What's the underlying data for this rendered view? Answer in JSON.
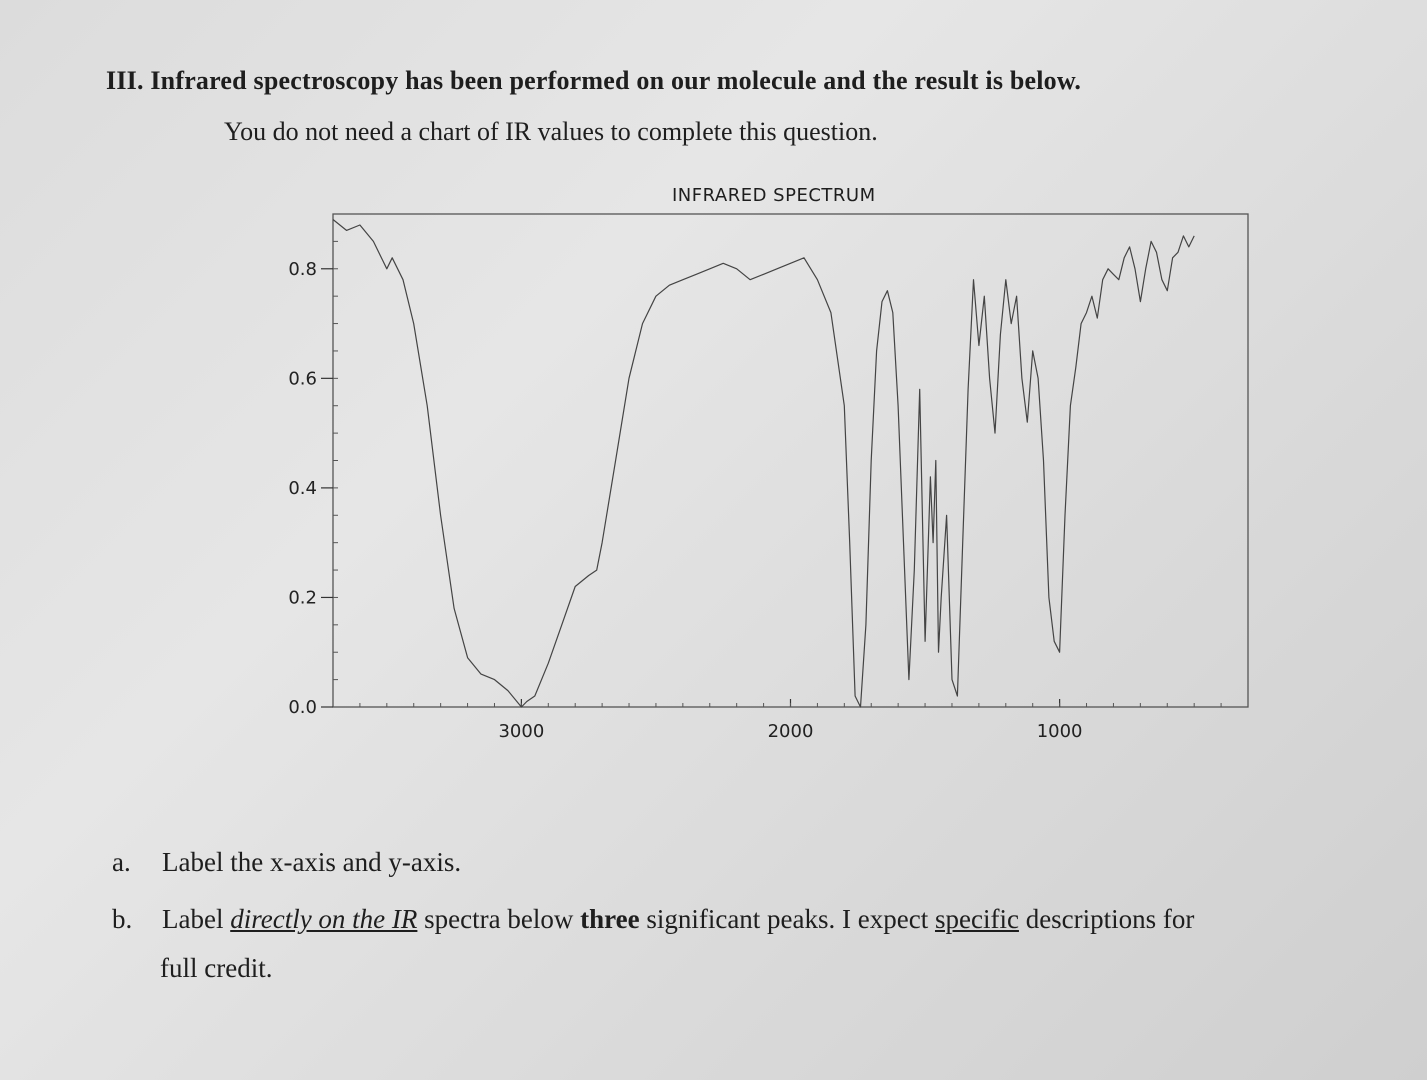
{
  "question": {
    "heading": "III. Infrared spectroscopy has been performed on our molecule and the result is below.",
    "subtext": "You do not need a chart of IR values to complete this question."
  },
  "chart_data": {
    "type": "line",
    "title": "INFRARED SPECTRUM",
    "xlabel": "",
    "ylabel": "",
    "xlim": [
      3700,
      300
    ],
    "ylim": [
      0.0,
      0.9
    ],
    "x_ticks": [
      "3000",
      "2000",
      "1000"
    ],
    "y_ticks": [
      "0.0",
      "0.2",
      "0.4",
      "0.6",
      "0.8"
    ],
    "grid": false,
    "series": [
      {
        "x": [
          3700,
          3650,
          3600,
          3550,
          3500,
          3480,
          3440,
          3400,
          3350,
          3300,
          3250,
          3200,
          3150,
          3100,
          3050,
          3000,
          2980,
          2950,
          2900,
          2850,
          2800,
          2750,
          2720,
          2700,
          2650,
          2600,
          2550,
          2500,
          2450,
          2400,
          2350,
          2300,
          2250,
          2200,
          2150,
          2100,
          2050,
          2000,
          1950,
          1900,
          1850,
          1800,
          1780,
          1760,
          1740,
          1720,
          1700,
          1680,
          1660,
          1640,
          1620,
          1600,
          1580,
          1560,
          1540,
          1520,
          1500,
          1480,
          1470,
          1460,
          1450,
          1440,
          1420,
          1400,
          1380,
          1360,
          1340,
          1320,
          1300,
          1280,
          1260,
          1240,
          1220,
          1200,
          1180,
          1160,
          1140,
          1120,
          1100,
          1080,
          1060,
          1040,
          1020,
          1000,
          980,
          960,
          940,
          920,
          900,
          880,
          860,
          840,
          820,
          800,
          780,
          760,
          740,
          720,
          700,
          680,
          660,
          640,
          620,
          600,
          580,
          560,
          540,
          520,
          500
        ],
        "y": [
          0.89,
          0.87,
          0.88,
          0.85,
          0.8,
          0.82,
          0.78,
          0.7,
          0.55,
          0.35,
          0.18,
          0.09,
          0.06,
          0.05,
          0.03,
          0.0,
          0.01,
          0.02,
          0.08,
          0.15,
          0.22,
          0.24,
          0.25,
          0.3,
          0.45,
          0.6,
          0.7,
          0.75,
          0.77,
          0.78,
          0.79,
          0.8,
          0.81,
          0.8,
          0.78,
          0.79,
          0.8,
          0.81,
          0.82,
          0.78,
          0.72,
          0.55,
          0.3,
          0.02,
          0.0,
          0.15,
          0.45,
          0.65,
          0.74,
          0.76,
          0.72,
          0.55,
          0.3,
          0.05,
          0.25,
          0.58,
          0.12,
          0.42,
          0.3,
          0.45,
          0.1,
          0.2,
          0.35,
          0.05,
          0.02,
          0.3,
          0.58,
          0.78,
          0.66,
          0.75,
          0.6,
          0.5,
          0.68,
          0.78,
          0.7,
          0.75,
          0.6,
          0.52,
          0.65,
          0.6,
          0.45,
          0.2,
          0.12,
          0.1,
          0.35,
          0.55,
          0.62,
          0.7,
          0.72,
          0.75,
          0.71,
          0.78,
          0.8,
          0.79,
          0.78,
          0.82,
          0.84,
          0.8,
          0.74,
          0.8,
          0.85,
          0.83,
          0.78,
          0.76,
          0.82,
          0.83,
          0.86,
          0.84,
          0.86
        ]
      }
    ]
  },
  "items": {
    "a_marker": "a.",
    "a_text": "Label the x-axis and y-axis.",
    "b_marker": "b.",
    "b_text_1": "Label ",
    "b_text_2": "directly on the IR",
    "b_text_3": " spectra below ",
    "b_text_4": "three",
    "b_text_5": " significant peaks.  I expect ",
    "b_text_6": "specific",
    "b_text_7": " descriptions for",
    "b_text_8": "full credit."
  }
}
